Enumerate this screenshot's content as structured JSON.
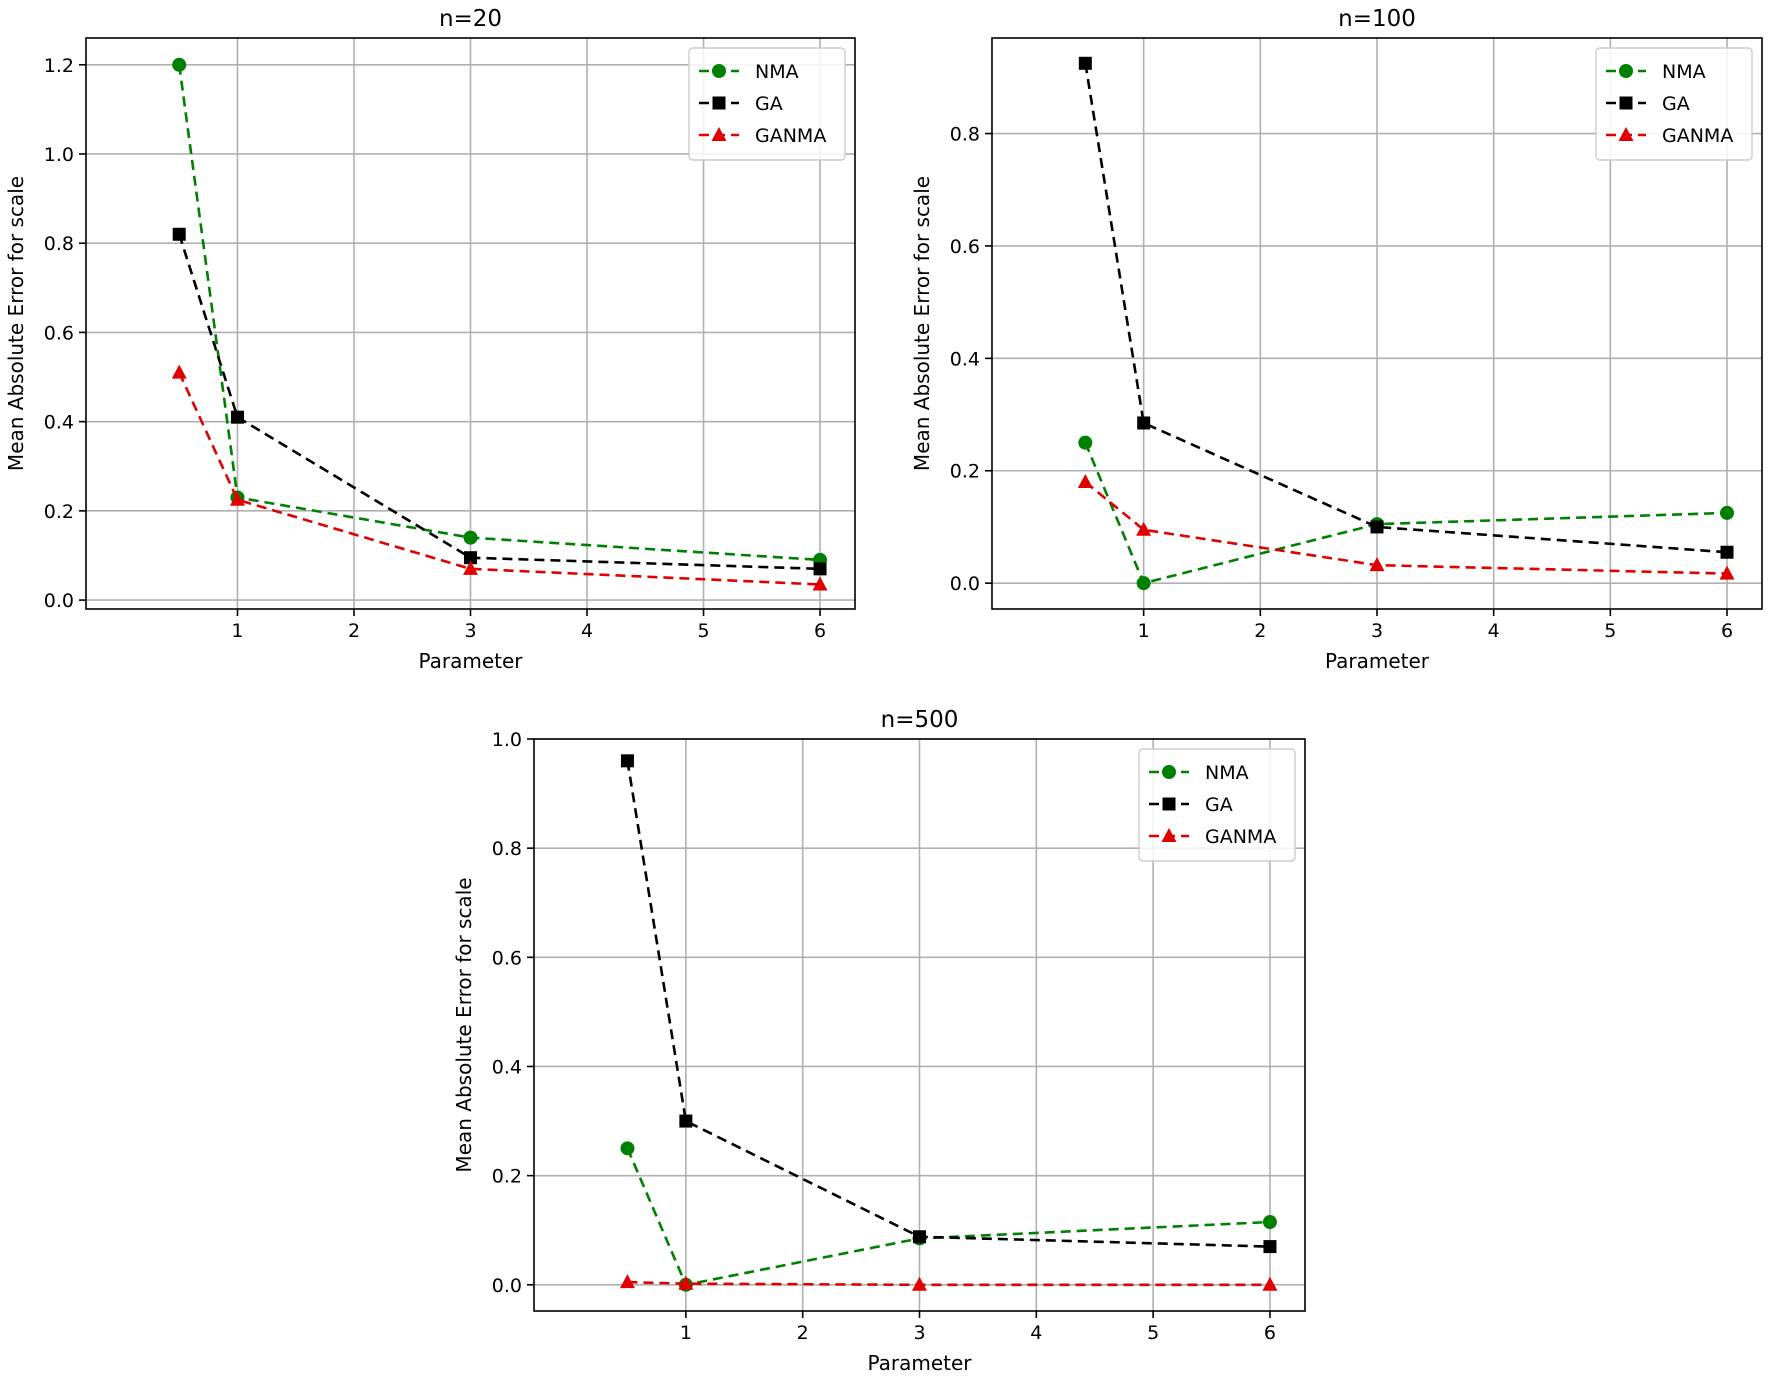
{
  "chart_data": [
    {
      "type": "line",
      "title": "n=20",
      "xlabel": "Parameter",
      "ylabel": "Mean Absolute Error for scale",
      "x": [
        0.5,
        1,
        3,
        6
      ],
      "xlim": [
        -0.3,
        6.3
      ],
      "ylim": [
        -0.02,
        1.26
      ],
      "xticks": [
        1,
        2,
        3,
        4,
        5,
        6
      ],
      "yticks": [
        0.0,
        0.2,
        0.4,
        0.6,
        0.8,
        1.0,
        1.2
      ],
      "ytick_labels": [
        "0.0",
        "0.2",
        "0.4",
        "0.6",
        "0.8",
        "1.0",
        "1.2"
      ],
      "grid": true,
      "legend_position": "top-right",
      "series": [
        {
          "name": "NMA",
          "values": [
            1.2,
            0.23,
            0.14,
            0.09
          ],
          "color": "#008000",
          "marker": "circle",
          "line": "dashed"
        },
        {
          "name": "GA",
          "values": [
            0.82,
            0.41,
            0.095,
            0.07
          ],
          "color": "#000000",
          "marker": "square",
          "line": "dashed"
        },
        {
          "name": "GANMA",
          "values": [
            0.51,
            0.225,
            0.07,
            0.035
          ],
          "color": "#e00000",
          "marker": "triangle",
          "line": "dashed"
        }
      ]
    },
    {
      "type": "line",
      "title": "n=100",
      "xlabel": "Parameter",
      "ylabel": "Mean Absolute Error for scale",
      "x": [
        0.5,
        1,
        3,
        6
      ],
      "xlim": [
        -0.3,
        6.3
      ],
      "ylim": [
        -0.046,
        0.97
      ],
      "xticks": [
        1,
        2,
        3,
        4,
        5,
        6
      ],
      "yticks": [
        0.0,
        0.2,
        0.4,
        0.6,
        0.8
      ],
      "ytick_labels": [
        "0.0",
        "0.2",
        "0.4",
        "0.6",
        "0.8"
      ],
      "grid": true,
      "legend_position": "top-right",
      "series": [
        {
          "name": "NMA",
          "values": [
            0.25,
            0.0,
            0.105,
            0.125
          ],
          "color": "#008000",
          "marker": "circle",
          "line": "dashed"
        },
        {
          "name": "GA",
          "values": [
            0.925,
            0.285,
            0.1,
            0.055
          ],
          "color": "#000000",
          "marker": "square",
          "line": "dashed"
        },
        {
          "name": "GANMA",
          "values": [
            0.18,
            0.095,
            0.032,
            0.017
          ],
          "color": "#e00000",
          "marker": "triangle",
          "line": "dashed"
        }
      ]
    },
    {
      "type": "line",
      "title": "n=500",
      "xlabel": "Parameter",
      "ylabel": "Mean Absolute Error for scale",
      "x": [
        0.5,
        1,
        3,
        6
      ],
      "xlim": [
        -0.3,
        6.3
      ],
      "ylim": [
        -0.048,
        1.0
      ],
      "xticks": [
        1,
        2,
        3,
        4,
        5,
        6
      ],
      "yticks": [
        0.0,
        0.2,
        0.4,
        0.6,
        0.8,
        1.0
      ],
      "ytick_labels": [
        "0.0",
        "0.2",
        "0.4",
        "0.6",
        "0.8",
        "1.0"
      ],
      "grid": true,
      "legend_position": "top-right",
      "series": [
        {
          "name": "NMA",
          "values": [
            0.25,
            0.0,
            0.085,
            0.115
          ],
          "color": "#008000",
          "marker": "circle",
          "line": "dashed"
        },
        {
          "name": "GA",
          "values": [
            0.96,
            0.3,
            0.088,
            0.07
          ],
          "color": "#000000",
          "marker": "square",
          "line": "dashed"
        },
        {
          "name": "GANMA",
          "values": [
            0.005,
            0.002,
            0.0,
            0.0
          ],
          "color": "#e00000",
          "marker": "triangle",
          "line": "dashed"
        }
      ]
    }
  ]
}
